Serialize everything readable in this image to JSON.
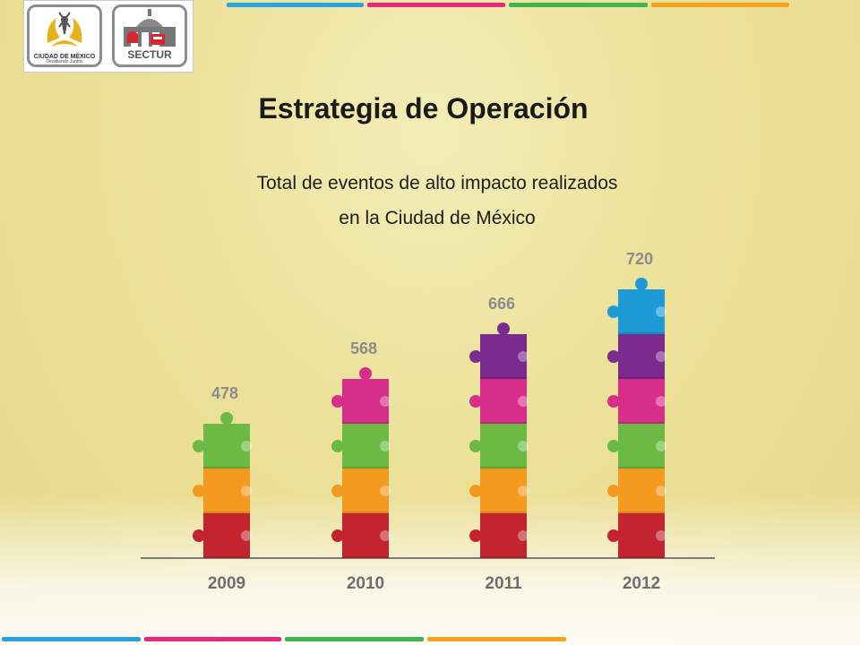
{
  "header": {
    "title": "Estrategia de Operación",
    "subtitle_line1": "Total de eventos de alto impacto realizados",
    "subtitle_line2": "en la Ciudad de México"
  },
  "logos": {
    "cdmx_name": "CIUDAD DE MÉXICO",
    "cdmx_tagline": "Decidiendo Juntos",
    "sectur_name": "SECTUR"
  },
  "colors": {
    "strip_blue": "#2aa2df",
    "strip_pink": "#e8277a",
    "strip_green": "#3cb54a",
    "strip_orange": "#f7a21b",
    "piece_red": "#c4242f",
    "piece_orange": "#f39a1f",
    "piece_green": "#6cb944",
    "piece_pink": "#d62e8a",
    "piece_purple": "#7b2a8e",
    "piece_blue": "#1e9ad6",
    "value_label": "#8c8c8c",
    "axis_label": "#6e6e6e"
  },
  "chart_data": {
    "type": "bar",
    "categories": [
      "2009",
      "2010",
      "2011",
      "2012"
    ],
    "values": [
      478,
      568,
      666,
      720
    ],
    "pieces_per_bar": [
      3,
      4,
      5,
      6
    ],
    "piece_color_order": [
      "red",
      "orange",
      "green",
      "pink",
      "purple",
      "blue"
    ],
    "title": "Total de eventos de alto impacto realizados en la Ciudad de México"
  }
}
